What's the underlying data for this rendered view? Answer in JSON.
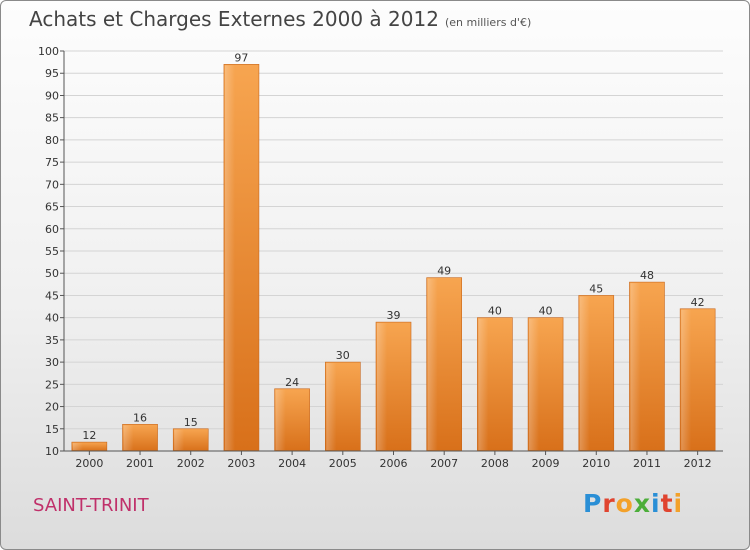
{
  "header": {
    "title": "Achats et Charges Externes 2000 à 2012",
    "subtitle": "(en milliers d'€)"
  },
  "footer": {
    "city": "SAINT-TRINIT",
    "logo_text": "Proxiti",
    "logo_colors": [
      "#2a8fd6",
      "#e0442f",
      "#f3a12a",
      "#4cae3a",
      "#2a8fd6",
      "#e0442f",
      "#f3a12a"
    ]
  },
  "chart_data": {
    "type": "bar",
    "categories": [
      "2000",
      "2001",
      "2002",
      "2003",
      "2004",
      "2005",
      "2006",
      "2007",
      "2008",
      "2009",
      "2010",
      "2011",
      "2012"
    ],
    "values": [
      12,
      16,
      15,
      97,
      24,
      30,
      39,
      49,
      40,
      40,
      45,
      48,
      42
    ],
    "data_labels": [
      "12",
      "16",
      "15",
      "97",
      "24",
      "30",
      "39",
      "49",
      "40",
      "40",
      "45",
      "48",
      "42"
    ],
    "ylim": [
      10,
      100
    ],
    "yticks": [
      "10",
      "15",
      "20",
      "25",
      "30",
      "35",
      "40",
      "45",
      "50",
      "55",
      "60",
      "65",
      "70",
      "75",
      "80",
      "85",
      "90",
      "95",
      "100"
    ],
    "grid": true,
    "bar_color": "#f0892c"
  }
}
